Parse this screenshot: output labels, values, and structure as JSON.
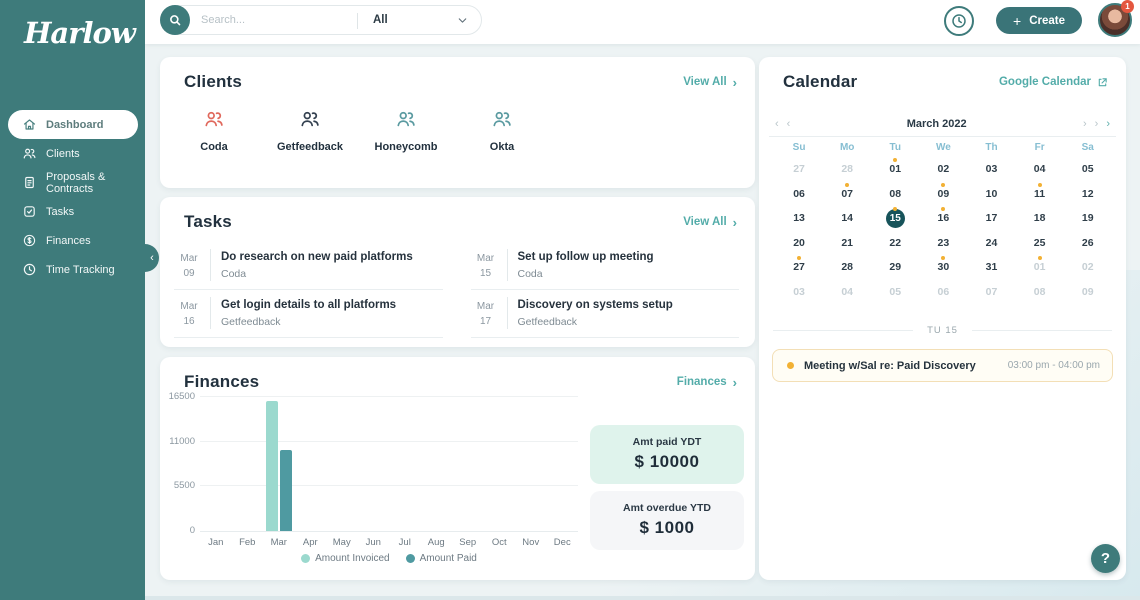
{
  "brand": {
    "name": "Harlow"
  },
  "topbar": {
    "search_placeholder": "Search...",
    "filter_label": "All",
    "create_label": "Create",
    "notification_count": "1"
  },
  "sidebar": {
    "items": [
      {
        "label": "Dashboard",
        "icon": "home",
        "active": true
      },
      {
        "label": "Clients",
        "icon": "users",
        "active": false
      },
      {
        "label": "Proposals & Contracts",
        "icon": "document",
        "active": false
      },
      {
        "label": "Tasks",
        "icon": "check-square",
        "active": false
      },
      {
        "label": "Finances",
        "icon": "dollar-circle",
        "active": false
      },
      {
        "label": "Time Tracking",
        "icon": "clock",
        "active": false
      }
    ]
  },
  "clients": {
    "title": "Clients",
    "view_all_label": "View All",
    "items": [
      {
        "name": "Coda",
        "color": "#E0685C"
      },
      {
        "name": "Getfeedback",
        "color": "#33404F"
      },
      {
        "name": "Honeycomb",
        "color": "#5A9AA0"
      },
      {
        "name": "Okta",
        "color": "#5A9AA0"
      }
    ]
  },
  "tasks": {
    "title": "Tasks",
    "view_all_label": "View All",
    "items": [
      {
        "month": "Mar",
        "day": "09",
        "title": "Do research on new paid platforms",
        "client": "Coda"
      },
      {
        "month": "Mar",
        "day": "15",
        "title": "Set up follow up meeting",
        "client": "Coda"
      },
      {
        "month": "Mar",
        "day": "16",
        "title": "Get login details to all platforms",
        "client": "Getfeedback"
      },
      {
        "month": "Mar",
        "day": "17",
        "title": "Discovery on systems setup",
        "client": "Getfeedback"
      }
    ]
  },
  "finances": {
    "title": "Finances",
    "link_label": "Finances",
    "stats": [
      {
        "label": "Amt paid YDT",
        "value": "$ 10000",
        "bg": "#DFF3EC"
      },
      {
        "label": "Amt overdue YTD",
        "value": "$ 1000",
        "bg": "#F5F6F8"
      }
    ]
  },
  "chart_data": {
    "type": "bar",
    "title": "Finances",
    "categories": [
      "Jan",
      "Feb",
      "Mar",
      "Apr",
      "May",
      "Jun",
      "Jul",
      "Aug",
      "Sep",
      "Oct",
      "Nov",
      "Dec"
    ],
    "series": [
      {
        "name": "Amount Invoiced",
        "color": "#9BD9CE",
        "values": [
          0,
          0,
          16000,
          0,
          0,
          0,
          0,
          0,
          0,
          0,
          0,
          0
        ]
      },
      {
        "name": "Amount Paid",
        "color": "#4F9AA1",
        "values": [
          0,
          0,
          10000,
          0,
          0,
          0,
          0,
          0,
          0,
          0,
          0,
          0
        ]
      }
    ],
    "yticks": [
      0,
      5500,
      11000,
      16500
    ],
    "ylim": [
      0,
      16500
    ],
    "grid": true,
    "legend_position": "bottom"
  },
  "calendar": {
    "title": "Calendar",
    "link_label": "Google Calendar",
    "month_label": "March 2022",
    "prev_chevrons": [
      "‹",
      "‹"
    ],
    "next_chevrons": [
      "›",
      "›",
      "›"
    ],
    "day_headers": [
      "Su",
      "Mo",
      "Tu",
      "We",
      "Th",
      "Fr",
      "Sa"
    ],
    "weeks": [
      [
        {
          "d": "27",
          "muted": true
        },
        {
          "d": "28",
          "muted": true
        },
        {
          "d": "01",
          "dot": true
        },
        {
          "d": "02"
        },
        {
          "d": "03"
        },
        {
          "d": "04"
        },
        {
          "d": "05"
        }
      ],
      [
        {
          "d": "06"
        },
        {
          "d": "07",
          "dot": true
        },
        {
          "d": "08"
        },
        {
          "d": "09",
          "dot": true
        },
        {
          "d": "10"
        },
        {
          "d": "11",
          "dot": true
        },
        {
          "d": "12"
        }
      ],
      [
        {
          "d": "13"
        },
        {
          "d": "14"
        },
        {
          "d": "15",
          "dot": true,
          "selected": true
        },
        {
          "d": "16",
          "dot": true
        },
        {
          "d": "17"
        },
        {
          "d": "18"
        },
        {
          "d": "19"
        }
      ],
      [
        {
          "d": "20"
        },
        {
          "d": "21"
        },
        {
          "d": "22"
        },
        {
          "d": "23"
        },
        {
          "d": "24"
        },
        {
          "d": "25"
        },
        {
          "d": "26"
        }
      ],
      [
        {
          "d": "27",
          "dot": true
        },
        {
          "d": "28"
        },
        {
          "d": "29"
        },
        {
          "d": "30",
          "dot": true
        },
        {
          "d": "31"
        },
        {
          "d": "01",
          "muted": true,
          "dot": true
        },
        {
          "d": "02",
          "muted": true
        }
      ],
      [
        {
          "d": "03",
          "muted": true
        },
        {
          "d": "04",
          "muted": true
        },
        {
          "d": "05",
          "muted": true
        },
        {
          "d": "06",
          "muted": true
        },
        {
          "d": "07",
          "muted": true
        },
        {
          "d": "08",
          "muted": true
        },
        {
          "d": "09",
          "muted": true
        }
      ]
    ],
    "divider_label": "TU 15",
    "event": {
      "title": "Meeting w/Sal re: Paid Discovery",
      "time": "03:00 pm - 04:00 pm"
    },
    "help_label": "?"
  },
  "colors": {
    "brand_teal": "#3E7B7B",
    "link_teal": "#53ACA9",
    "selected_day": "#17535A",
    "event_dot": "#F2B134",
    "badge_red": "#E4573F"
  }
}
